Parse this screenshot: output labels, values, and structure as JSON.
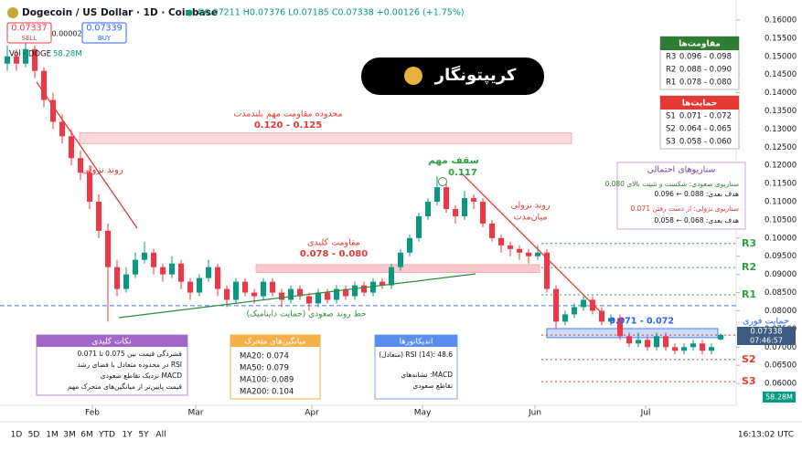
{
  "chart_data": {
    "type": "candlestick",
    "title": "Dogecoin / US Dollar · 1D · Coinbase",
    "header_values": "O0.07211 H0.07376 L0.07185 C0.07338 +0.00126 (+1.75%)",
    "up_color": "#089981",
    "down_color": "#f23645",
    "categories": [
      null,
      null,
      null,
      null,
      null,
      null,
      null,
      null,
      null,
      null,
      null,
      null,
      null,
      null,
      null,
      null,
      null,
      null,
      null,
      null,
      null,
      null,
      null,
      null,
      null,
      null,
      null,
      null,
      null,
      null,
      null,
      null,
      null,
      null,
      null,
      null,
      null,
      null,
      null,
      null,
      null,
      null,
      null,
      null,
      null,
      null,
      null,
      null,
      null,
      null,
      null,
      null,
      null,
      null,
      null,
      null,
      null,
      null,
      null,
      null,
      null,
      null,
      null,
      null,
      null,
      null,
      null,
      null,
      null,
      null,
      null,
      null,
      null,
      null,
      null,
      null,
      null,
      null,
      null
    ],
    "ohlc": [
      [
        0.148,
        0.153,
        0.146,
        0.15
      ],
      [
        0.15,
        0.152,
        0.146,
        0.148
      ],
      [
        0.148,
        0.155,
        0.147,
        0.152
      ],
      [
        0.152,
        0.153,
        0.144,
        0.146
      ],
      [
        0.146,
        0.147,
        0.136,
        0.138
      ],
      [
        0.138,
        0.14,
        0.13,
        0.132
      ],
      [
        0.132,
        0.134,
        0.126,
        0.128
      ],
      [
        0.128,
        0.13,
        0.12,
        0.122
      ],
      [
        0.122,
        0.124,
        0.116,
        0.118
      ],
      [
        0.118,
        0.12,
        0.108,
        0.11
      ],
      [
        0.11,
        0.112,
        0.1,
        0.102
      ],
      [
        0.102,
        0.104,
        0.077,
        0.092
      ],
      [
        0.092,
        0.094,
        0.084,
        0.086
      ],
      [
        0.086,
        0.092,
        0.085,
        0.09
      ],
      [
        0.09,
        0.096,
        0.089,
        0.094
      ],
      [
        0.094,
        0.099,
        0.093,
        0.096
      ],
      [
        0.096,
        0.097,
        0.09,
        0.092
      ],
      [
        0.092,
        0.093,
        0.088,
        0.09
      ],
      [
        0.09,
        0.095,
        0.089,
        0.093
      ],
      [
        0.093,
        0.094,
        0.086,
        0.088
      ],
      [
        0.088,
        0.089,
        0.083,
        0.085
      ],
      [
        0.085,
        0.09,
        0.084,
        0.089
      ],
      [
        0.089,
        0.094,
        0.088,
        0.092
      ],
      [
        0.092,
        0.093,
        0.084,
        0.086
      ],
      [
        0.086,
        0.087,
        0.081,
        0.083
      ],
      [
        0.083,
        0.089,
        0.082,
        0.088
      ],
      [
        0.088,
        0.089,
        0.084,
        0.085
      ],
      [
        0.085,
        0.086,
        0.082,
        0.084
      ],
      [
        0.084,
        0.089,
        0.083,
        0.088
      ],
      [
        0.088,
        0.089,
        0.084,
        0.085
      ],
      [
        0.085,
        0.086,
        0.081,
        0.083
      ],
      [
        0.083,
        0.087,
        0.082,
        0.086
      ],
      [
        0.086,
        0.087,
        0.083,
        0.084
      ],
      [
        0.084,
        0.085,
        0.08,
        0.082
      ],
      [
        0.082,
        0.086,
        0.081,
        0.085
      ],
      [
        0.085,
        0.086,
        0.082,
        0.083
      ],
      [
        0.083,
        0.087,
        0.082,
        0.086
      ],
      [
        0.086,
        0.087,
        0.083,
        0.084
      ],
      [
        0.084,
        0.088,
        0.083,
        0.087
      ],
      [
        0.087,
        0.088,
        0.084,
        0.085
      ],
      [
        0.085,
        0.089,
        0.084,
        0.088
      ],
      [
        0.088,
        0.089,
        0.086,
        0.087
      ],
      [
        0.087,
        0.093,
        0.086,
        0.092
      ],
      [
        0.092,
        0.097,
        0.091,
        0.096
      ],
      [
        0.096,
        0.101,
        0.095,
        0.1
      ],
      [
        0.1,
        0.107,
        0.099,
        0.106
      ],
      [
        0.106,
        0.111,
        0.105,
        0.11
      ],
      [
        0.11,
        0.117,
        0.109,
        0.114
      ],
      [
        0.114,
        0.115,
        0.107,
        0.108
      ],
      [
        0.108,
        0.109,
        0.104,
        0.106
      ],
      [
        0.106,
        0.113,
        0.105,
        0.111
      ],
      [
        0.111,
        0.112,
        0.108,
        0.11
      ],
      [
        0.11,
        0.111,
        0.103,
        0.104
      ],
      [
        0.104,
        0.105,
        0.099,
        0.1
      ],
      [
        0.1,
        0.101,
        0.096,
        0.098
      ],
      [
        0.098,
        0.099,
        0.095,
        0.097
      ],
      [
        0.097,
        0.098,
        0.094,
        0.096
      ],
      [
        0.096,
        0.097,
        0.093,
        0.095
      ],
      [
        0.095,
        0.098,
        0.094,
        0.096
      ],
      [
        0.096,
        0.097,
        0.085,
        0.086
      ],
      [
        0.086,
        0.087,
        0.075,
        0.077
      ],
      [
        0.077,
        0.08,
        0.076,
        0.079
      ],
      [
        0.079,
        0.082,
        0.078,
        0.081
      ],
      [
        0.081,
        0.084,
        0.08,
        0.083
      ],
      [
        0.083,
        0.084,
        0.079,
        0.08
      ],
      [
        0.08,
        0.081,
        0.076,
        0.077
      ],
      [
        0.077,
        0.079,
        0.076,
        0.078
      ],
      [
        0.078,
        0.079,
        0.072,
        0.073
      ],
      [
        0.073,
        0.074,
        0.07,
        0.071
      ],
      [
        0.071,
        0.074,
        0.07,
        0.072
      ],
      [
        0.072,
        0.073,
        0.069,
        0.07
      ],
      [
        0.07,
        0.074,
        0.069,
        0.073
      ],
      [
        0.073,
        0.074,
        0.069,
        0.07
      ],
      [
        0.07,
        0.071,
        0.068,
        0.069
      ],
      [
        0.069,
        0.071,
        0.068,
        0.07
      ],
      [
        0.07,
        0.072,
        0.069,
        0.071
      ],
      [
        0.071,
        0.072,
        0.068,
        0.069
      ],
      [
        0.069,
        0.071,
        0.068,
        0.07
      ],
      [
        0.07211,
        0.07376,
        0.07185,
        0.07338
      ]
    ],
    "ylim": [
      0.055,
      0.1635
    ],
    "yticks": [
      {
        "value": 0.06,
        "label": "0.06000"
      },
      {
        "value": 0.065,
        "label": "0.06500"
      },
      {
        "value": 0.07,
        "label": "0.07000"
      },
      {
        "value": 0.075,
        "label": "0.07500"
      },
      {
        "value": 0.08,
        "label": "0.08000"
      },
      {
        "value": 0.085,
        "label": "0.08500"
      },
      {
        "value": 0.09,
        "label": "0.09000"
      },
      {
        "value": 0.095,
        "label": "0.09500"
      },
      {
        "value": 0.1,
        "label": "0.10000"
      },
      {
        "value": 0.105,
        "label": "0.10500"
      },
      {
        "value": 0.11,
        "label": "0.11000"
      },
      {
        "value": 0.115,
        "label": "0.11500"
      },
      {
        "value": 0.12,
        "label": "0.12000"
      },
      {
        "value": 0.125,
        "label": "0.12500"
      },
      {
        "value": 0.13,
        "label": "0.13000"
      },
      {
        "value": 0.135,
        "label": "0.13500"
      },
      {
        "value": 0.14,
        "label": "0.14000"
      },
      {
        "value": 0.145,
        "label": "0.14500"
      },
      {
        "value": 0.15,
        "label": "0.15000"
      },
      {
        "value": 0.155,
        "label": "0.15500"
      },
      {
        "value": 0.16,
        "label": "0.16000"
      }
    ],
    "xticks": [
      {
        "value": 9.3,
        "label": "Feb"
      },
      {
        "value": 20.6,
        "label": "Mar"
      },
      {
        "value": 33.3,
        "label": "Apr"
      },
      {
        "value": 45.4,
        "label": "May"
      },
      {
        "value": 57.7,
        "label": "Jun"
      },
      {
        "value": 69.8,
        "label": "Jul"
      }
    ],
    "levels": [
      {
        "name": "R3",
        "value": 0.0985,
        "color": "#2ea043"
      },
      {
        "name": "R2",
        "value": 0.0919,
        "color": "#2ea043"
      },
      {
        "name": "R1",
        "value": 0.0844,
        "color": "#2ea043"
      },
      {
        "name": "S1",
        "value": 0.0733,
        "color": "#e53935"
      },
      {
        "name": "S2",
        "value": 0.0666,
        "color": "#e53935"
      },
      {
        "name": "S3",
        "value": 0.0605,
        "color": "#e53935"
      }
    ],
    "ref_line": {
      "value": 0.0814,
      "color": "#4a7bd8"
    },
    "zones": [
      {
        "low": 0.126,
        "high": 0.129,
        "color": "#fbd9dc"
      },
      {
        "low": 0.0905,
        "high": 0.0927,
        "color": "#f9c9cd"
      },
      {
        "low": 0.0726,
        "high": 0.0751,
        "color": "#c9dbf7"
      }
    ],
    "countdown": "07:46:57"
  },
  "quote": {
    "sell": "0.07337",
    "sell_label": "SELL",
    "spread": "0.00002",
    "buy": "0.07339",
    "buy_label": "BUY"
  },
  "volume": {
    "label": "Vol · DOGE",
    "value": "58.28M"
  },
  "logo": "کریپتونگار",
  "annotations": {
    "long_resistance_title": "محدوده مقاومت مهم بلندمدت",
    "long_resistance_range": "0.120 - 0.125",
    "downtrend": "روند نزولی",
    "peak_title": "سقف مهم",
    "peak_value": "0.117",
    "mid_downtrend_1": "روند نزولی",
    "mid_downtrend_2": "میان‌مدت",
    "key_resistance_title": "مقاومت کلیدی",
    "key_resistance_range": "0.078 - 0.080",
    "uptrend_line": "خط روند صعودی (حمایت داینامیک)",
    "immediate_support": "حمایت فوری",
    "immediate_support_range": "0.071 - 0.072"
  },
  "resistance_table": {
    "title": "مقاومت‌ها",
    "rows": [
      [
        "R3",
        "0.096 - 0.098"
      ],
      [
        "R2",
        "0.088 - 0.090"
      ],
      [
        "R1",
        "0.078 - 0.080"
      ]
    ]
  },
  "support_table": {
    "title": "حمایت‌ها",
    "rows": [
      [
        "S1",
        "0.071 - 0.072"
      ],
      [
        "S2",
        "0.064 - 0.065"
      ],
      [
        "S3",
        "0.058 - 0.060"
      ]
    ]
  },
  "scenarios": {
    "title": "سناریوهای احتمالی",
    "bull": "سناریوی صعودی: شکست و تثبیت بالای 0.080",
    "bull_target": "هدف بعدی: 0.088 ← 0.096",
    "bear": "سناریوی نزولی: از دست رفتن 0.071",
    "bear_target": "هدف بعدی: 0.068 ← 0.058"
  },
  "key_points": {
    "title": "نکات کلیدی",
    "items": [
      "فشردگی قیمت بین 0.075 تا 0.071",
      "RSI در محدوده متعادل با فضای رشد",
      "MACD نزدیک تقاطع صعودی",
      "قیمت پایین‌تر از میانگین‌های متحرک مهم"
    ]
  },
  "moving_averages": {
    "title": "میانگین‌های متحرک",
    "items": [
      "MA20: 0.074",
      "MA50: 0.079",
      "MA100: 0.089",
      "MA200: 0.104"
    ]
  },
  "indicators": {
    "title": "اندیکاتورها",
    "rsi": "RSI (14): 48.6 (متعادل)",
    "macd_1": "MACD: نشانه‌های",
    "macd_2": "تقاطع صعودی"
  },
  "toolbar": {
    "ranges": [
      "1D",
      "5D",
      "1M",
      "3M",
      "6M",
      "YTD",
      "1Y",
      "5Y",
      "All"
    ],
    "time": "16:13:02 UTC"
  }
}
